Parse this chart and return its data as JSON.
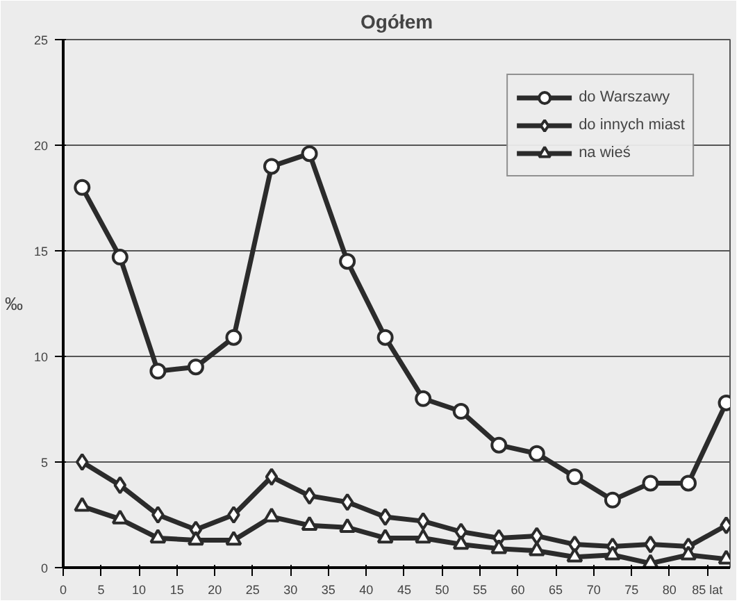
{
  "chart_data": {
    "type": "line",
    "title": "Ogółem",
    "ylabel": "‰",
    "x": [
      2.5,
      7.5,
      12.5,
      17.5,
      22.5,
      27.5,
      32.5,
      37.5,
      42.5,
      47.5,
      52.5,
      57.5,
      62.5,
      67.5,
      72.5,
      77.5,
      82.5,
      87.5
    ],
    "series": [
      {
        "name": "do Warszawy",
        "color": "#2b2b2b",
        "marker": "circle",
        "values": [
          18.0,
          14.7,
          9.3,
          9.5,
          10.9,
          19.0,
          19.6,
          14.5,
          10.9,
          8.0,
          7.4,
          5.8,
          5.4,
          4.3,
          3.2,
          4.0,
          4.0,
          7.8
        ]
      },
      {
        "name": "do innych miast",
        "color": "#2b2b2b",
        "marker": "diamond",
        "values": [
          5.0,
          3.9,
          2.5,
          1.8,
          2.5,
          4.3,
          3.4,
          3.1,
          2.4,
          2.2,
          1.7,
          1.4,
          1.5,
          1.1,
          1.0,
          1.1,
          1.0,
          2.0
        ]
      },
      {
        "name": "na wieś",
        "color": "#2b2b2b",
        "marker": "triangle",
        "values": [
          2.9,
          2.3,
          1.4,
          1.3,
          1.3,
          2.4,
          2.0,
          1.9,
          1.4,
          1.4,
          1.1,
          0.9,
          0.8,
          0.5,
          0.6,
          0.2,
          0.6,
          0.4
        ]
      }
    ],
    "xlim": [
      0,
      88
    ],
    "ylim": [
      0,
      25
    ],
    "xticks": [
      0,
      5,
      10,
      15,
      20,
      25,
      30,
      35,
      40,
      45,
      50,
      55,
      60,
      65,
      70,
      75,
      80,
      {
        "value": 85,
        "label": "85 lat"
      }
    ],
    "yticks": [
      0,
      5,
      10,
      15,
      20,
      25
    ],
    "grid": "y",
    "legend": "top right",
    "line_style": "solid"
  }
}
